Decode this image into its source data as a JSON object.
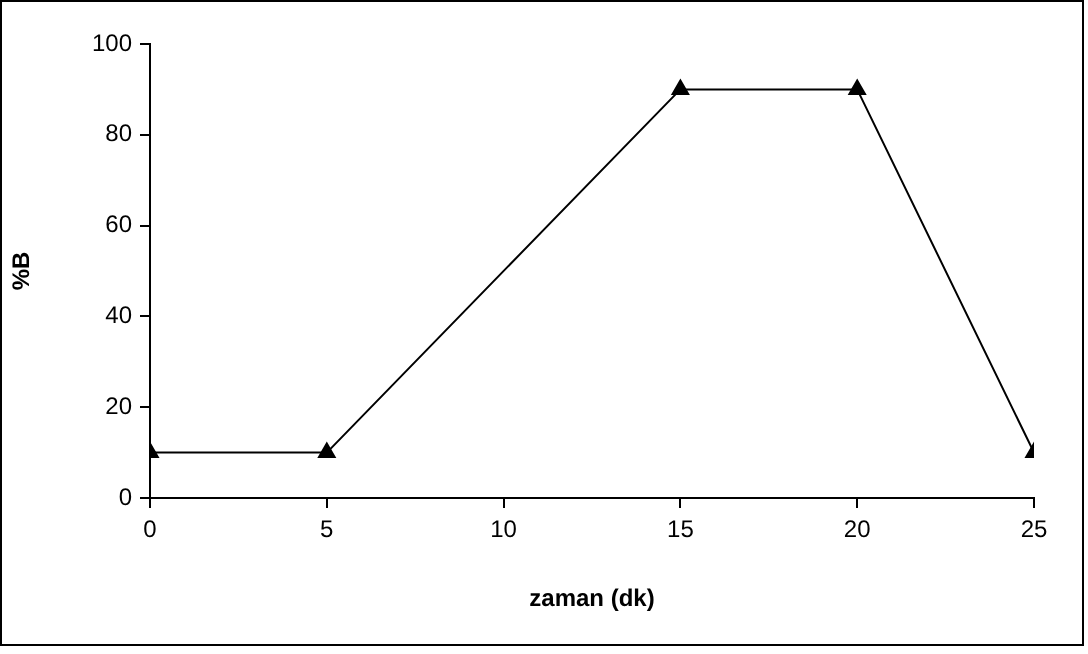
{
  "chart_data": {
    "type": "line",
    "xlabel": "zaman (dk)",
    "ylabel": "%B",
    "x": [
      0,
      5,
      15,
      20,
      25
    ],
    "series": [
      {
        "color": "#000000",
        "values": [
          10,
          10,
          90,
          90,
          10
        ]
      }
    ],
    "xlim": [
      0,
      25
    ],
    "xticks": [
      0,
      5,
      10,
      15,
      20,
      25
    ],
    "ylim": [
      0,
      100
    ],
    "yticks": [
      0,
      20,
      40,
      60,
      80,
      100
    ],
    "grid": false,
    "legend": false,
    "marker": "triangle",
    "line_style": "solid"
  }
}
